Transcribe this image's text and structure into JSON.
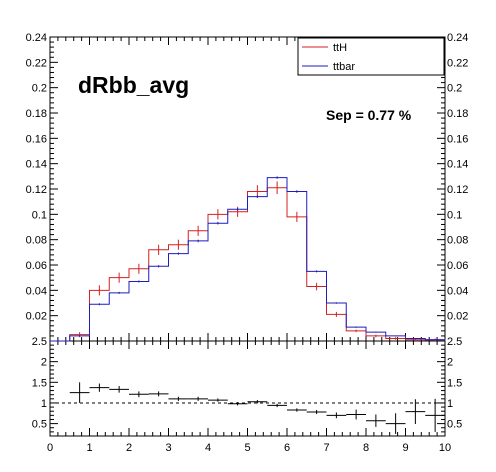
{
  "colors": {
    "ttH": "#d42020",
    "ttbar": "#1c1cc0",
    "axis": "#000000",
    "background": "#ffffff"
  },
  "chart_data": [
    {
      "type": "step-histogram",
      "title": "dRbb_avg",
      "annotation": "Sep = 0.77 %",
      "xlim": [
        0,
        10
      ],
      "ylim": [
        0,
        0.24
      ],
      "x_ticks": [
        "0",
        "1",
        "2",
        "3",
        "4",
        "5",
        "6",
        "7",
        "8",
        "9",
        "10"
      ],
      "y_ticks": [
        "0.02",
        "0.04",
        "0.06",
        "0.08",
        "0.1",
        "0.12",
        "0.14",
        "0.16",
        "0.18",
        "0.2",
        "0.22",
        "0.24"
      ],
      "legend": {
        "position": "top-right",
        "entries": [
          "ttH",
          "ttbar"
        ]
      },
      "bin_edges": [
        0.5,
        1.0,
        1.5,
        2.0,
        2.5,
        3.0,
        3.5,
        4.0,
        4.5,
        5.0,
        5.5,
        6.0,
        6.5,
        7.0,
        7.5,
        8.0,
        8.5,
        9.0,
        9.5,
        10.0
      ],
      "series": [
        {
          "name": "ttH",
          "values": [
            0.005,
            0.04,
            0.05,
            0.057,
            0.072,
            0.076,
            0.087,
            0.1,
            0.102,
            0.118,
            0.121,
            0.098,
            0.043,
            0.021,
            0.008,
            0.004,
            0.002,
            0.001,
            0.001
          ],
          "errors": [
            0.002,
            0.004,
            0.004,
            0.004,
            0.004,
            0.004,
            0.004,
            0.004,
            0.004,
            0.005,
            0.005,
            0.004,
            0.003,
            0.002,
            0.001,
            0.001,
            0.001,
            0.001,
            0.001
          ]
        },
        {
          "name": "ttbar",
          "values": [
            0.004,
            0.029,
            0.038,
            0.047,
            0.059,
            0.069,
            0.079,
            0.093,
            0.104,
            0.114,
            0.129,
            0.118,
            0.055,
            0.03,
            0.011,
            0.007,
            0.004,
            0.002,
            0.001
          ],
          "errors": [
            0.0005,
            0.0008,
            0.0008,
            0.0008,
            0.0009,
            0.0009,
            0.001,
            0.001,
            0.001,
            0.001,
            0.001,
            0.001,
            0.0008,
            0.0006,
            0.0005,
            0.0004,
            0.0003,
            0.0002,
            0.0002
          ]
        }
      ]
    },
    {
      "type": "ratio-errorbar",
      "xlim": [
        0,
        10
      ],
      "ylim": [
        0.2,
        2.5
      ],
      "x_ticks": [
        "0",
        "1",
        "2",
        "3",
        "4",
        "5",
        "6",
        "7",
        "8",
        "9",
        "10"
      ],
      "y_ticks": [
        "0.5",
        "1",
        "1.5",
        "2",
        "2.5"
      ],
      "reference_line": 1,
      "points": [
        {
          "x": 0.75,
          "y": 1.25,
          "err": 0.25
        },
        {
          "x": 1.25,
          "y": 1.37,
          "err": 0.1
        },
        {
          "x": 1.75,
          "y": 1.33,
          "err": 0.08
        },
        {
          "x": 2.25,
          "y": 1.21,
          "err": 0.07
        },
        {
          "x": 2.75,
          "y": 1.22,
          "err": 0.06
        },
        {
          "x": 3.25,
          "y": 1.1,
          "err": 0.05
        },
        {
          "x": 3.75,
          "y": 1.1,
          "err": 0.05
        },
        {
          "x": 4.25,
          "y": 1.07,
          "err": 0.04
        },
        {
          "x": 4.75,
          "y": 0.98,
          "err": 0.04
        },
        {
          "x": 5.25,
          "y": 1.03,
          "err": 0.04
        },
        {
          "x": 5.75,
          "y": 0.94,
          "err": 0.04
        },
        {
          "x": 6.25,
          "y": 0.83,
          "err": 0.04
        },
        {
          "x": 6.75,
          "y": 0.78,
          "err": 0.05
        },
        {
          "x": 7.25,
          "y": 0.7,
          "err": 0.07
        },
        {
          "x": 7.75,
          "y": 0.72,
          "err": 0.12
        },
        {
          "x": 8.25,
          "y": 0.57,
          "err": 0.15
        },
        {
          "x": 8.75,
          "y": 0.5,
          "err": 0.25
        },
        {
          "x": 9.25,
          "y": 0.79,
          "err": 0.3
        },
        {
          "x": 9.75,
          "y": 0.7,
          "err": 0.4
        }
      ]
    }
  ]
}
